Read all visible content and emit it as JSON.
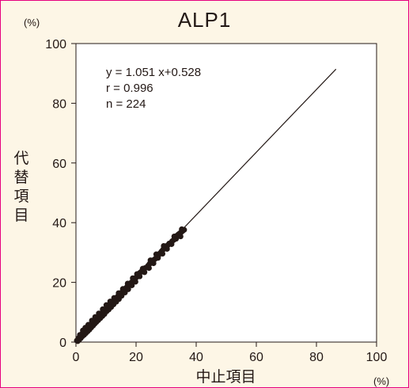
{
  "chart_data": {
    "type": "scatter",
    "title": "ALP1",
    "xlabel": "中止項目",
    "ylabel": "代替項目",
    "x_unit": "(%)",
    "y_unit": "(%)",
    "xlim": [
      0,
      100
    ],
    "ylim": [
      0,
      100
    ],
    "x_ticks": [
      0,
      20,
      40,
      60,
      80,
      100
    ],
    "y_ticks": [
      0,
      20,
      40,
      60,
      80,
      100
    ],
    "grid": false,
    "annotations": [
      "y = 1.051 x+0.528",
      "r = 0.996",
      "n = 224"
    ],
    "regression_line": {
      "slope": 1.051,
      "intercept": 0.528,
      "x_range": [
        0,
        86.5
      ]
    },
    "points": [
      [
        0.3,
        0.5
      ],
      [
        0.5,
        0.6
      ],
      [
        0.8,
        1.2
      ],
      [
        1.0,
        1.4
      ],
      [
        1.2,
        1.6
      ],
      [
        1.5,
        2.0
      ],
      [
        1.7,
        2.1
      ],
      [
        2.0,
        2.5
      ],
      [
        2.2,
        3.0
      ],
      [
        2.4,
        2.8
      ],
      [
        2.6,
        3.3
      ],
      [
        2.8,
        3.5
      ],
      [
        3.0,
        3.6
      ],
      [
        3.2,
        4.0
      ],
      [
        3.4,
        4.1
      ],
      [
        3.6,
        4.5
      ],
      [
        3.8,
        4.3
      ],
      [
        4.0,
        4.9
      ],
      [
        4.2,
        5.0
      ],
      [
        4.4,
        5.2
      ],
      [
        4.6,
        5.6
      ],
      [
        4.8,
        5.4
      ],
      [
        5.0,
        6.0
      ],
      [
        5.2,
        6.1
      ],
      [
        5.4,
        6.5
      ],
      [
        5.6,
        6.3
      ],
      [
        5.8,
        6.8
      ],
      [
        6.0,
        7.0
      ],
      [
        6.3,
        7.4
      ],
      [
        6.6,
        7.6
      ],
      [
        6.9,
        8.0
      ],
      [
        7.2,
        8.2
      ],
      [
        7.5,
        8.5
      ],
      [
        7.8,
        8.8
      ],
      [
        8.0,
        9.1
      ],
      [
        8.3,
        9.5
      ],
      [
        8.6,
        9.7
      ],
      [
        9.0,
        10.2
      ],
      [
        9.3,
        10.5
      ],
      [
        9.6,
        10.8
      ],
      [
        10.0,
        11.2
      ],
      [
        10.3,
        11.8
      ],
      [
        10.6,
        12.0
      ],
      [
        11.0,
        12.4
      ],
      [
        11.3,
        12.6
      ],
      [
        11.6,
        13.0
      ],
      [
        12.0,
        13.4
      ],
      [
        12.4,
        13.8
      ],
      [
        12.8,
        14.2
      ],
      [
        13.2,
        14.5
      ],
      [
        13.6,
        14.9
      ],
      [
        14.0,
        15.4
      ],
      [
        14.5,
        15.8
      ],
      [
        15.0,
        16.4
      ],
      [
        15.5,
        17.0
      ],
      [
        16.0,
        17.5
      ],
      [
        16.5,
        18.0
      ],
      [
        17.0,
        18.5
      ],
      [
        17.5,
        19.0
      ],
      [
        18.0,
        19.6
      ],
      [
        18.5,
        20.0
      ],
      [
        19.0,
        20.5
      ],
      [
        19.5,
        21.0
      ],
      [
        20.0,
        21.6
      ],
      [
        20.5,
        22.4
      ],
      [
        21.0,
        23.0
      ],
      [
        21.5,
        23.4
      ],
      [
        22.0,
        23.8
      ],
      [
        22.5,
        24.2
      ],
      [
        23.0,
        24.8
      ],
      [
        23.5,
        25.0
      ],
      [
        24.0,
        25.6
      ],
      [
        24.5,
        26.2
      ],
      [
        25.0,
        26.6
      ],
      [
        25.5,
        27.0
      ],
      [
        26.0,
        27.6
      ],
      [
        26.5,
        28.0
      ],
      [
        27.0,
        28.6
      ],
      [
        27.5,
        29.2
      ],
      [
        28.0,
        29.8
      ],
      [
        28.5,
        30.4
      ],
      [
        29.0,
        31.0
      ],
      [
        29.5,
        31.4
      ],
      [
        30.0,
        32.0
      ],
      [
        30.5,
        32.4
      ],
      [
        31.0,
        33.0
      ],
      [
        31.5,
        33.2
      ],
      [
        32.0,
        33.8
      ],
      [
        32.5,
        34.2
      ],
      [
        33.0,
        35.0
      ],
      [
        33.5,
        35.6
      ],
      [
        34.0,
        36.0
      ],
      [
        34.5,
        36.4
      ],
      [
        35.0,
        36.8
      ],
      [
        35.5,
        37.2
      ],
      [
        36.0,
        37.6
      ],
      [
        0.6,
        0.3
      ],
      [
        1.1,
        0.8
      ],
      [
        1.6,
        1.3
      ],
      [
        2.1,
        1.9
      ],
      [
        2.7,
        2.4
      ],
      [
        3.3,
        3.0
      ],
      [
        3.9,
        3.6
      ],
      [
        4.5,
        4.2
      ],
      [
        5.1,
        4.9
      ],
      [
        5.7,
        5.5
      ],
      [
        6.2,
        6.1
      ],
      [
        6.8,
        6.7
      ],
      [
        7.4,
        7.3
      ],
      [
        8.1,
        8.0
      ],
      [
        8.8,
        8.7
      ],
      [
        9.5,
        9.4
      ],
      [
        10.2,
        10.3
      ],
      [
        10.9,
        10.9
      ],
      [
        11.7,
        11.7
      ],
      [
        12.5,
        12.6
      ],
      [
        13.4,
        13.5
      ],
      [
        14.3,
        14.4
      ],
      [
        15.2,
        15.5
      ],
      [
        16.3,
        16.6
      ],
      [
        17.4,
        17.7
      ],
      [
        18.6,
        19.0
      ],
      [
        19.8,
        20.2
      ],
      [
        21.2,
        22.0
      ],
      [
        22.8,
        23.4
      ],
      [
        24.3,
        24.8
      ],
      [
        25.8,
        26.4
      ],
      [
        27.3,
        28.2
      ],
      [
        28.8,
        29.6
      ],
      [
        30.3,
        31.2
      ],
      [
        31.8,
        32.8
      ],
      [
        33.3,
        34.6
      ],
      [
        34.8,
        35.4
      ],
      [
        1.3,
        2.4
      ],
      [
        2.3,
        3.9
      ],
      [
        3.1,
        4.8
      ],
      [
        4.1,
        5.8
      ],
      [
        5.3,
        7.2
      ],
      [
        6.4,
        8.4
      ],
      [
        7.6,
        9.6
      ],
      [
        8.9,
        11.0
      ],
      [
        10.1,
        12.4
      ],
      [
        11.4,
        13.6
      ],
      [
        12.7,
        14.8
      ],
      [
        14.2,
        16.4
      ],
      [
        15.6,
        17.8
      ],
      [
        17.2,
        19.6
      ],
      [
        18.9,
        21.4
      ],
      [
        20.3,
        22.8
      ],
      [
        22.2,
        24.6
      ],
      [
        24.8,
        27.4
      ],
      [
        26.7,
        29.4
      ],
      [
        29.2,
        32.2
      ],
      [
        32.7,
        35.4
      ],
      [
        35.2,
        37.8
      ]
    ]
  }
}
